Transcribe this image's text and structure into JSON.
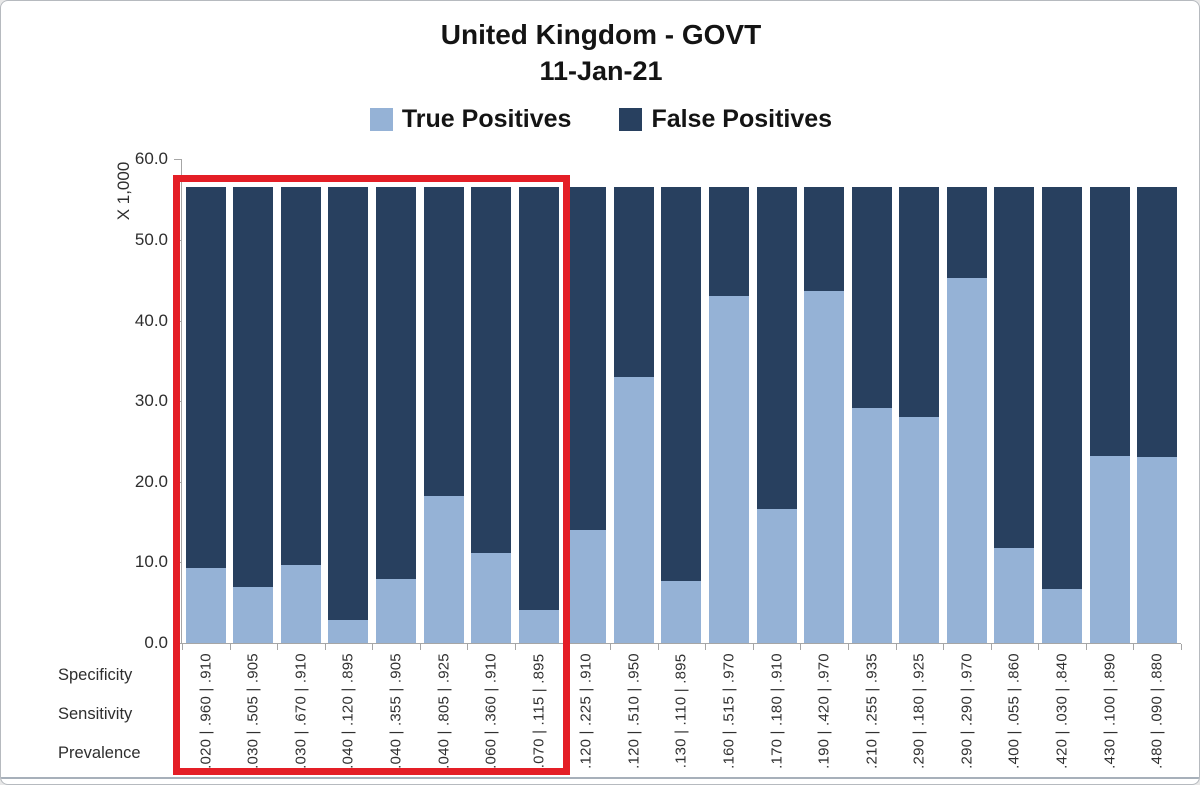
{
  "title": {
    "line1": "United Kingdom - GOVT",
    "line2": "11-Jan-21"
  },
  "legend": [
    {
      "label": "True Positives",
      "color": "#95b2d6"
    },
    {
      "label": "False Positives",
      "color": "#28405f"
    }
  ],
  "y_axis": {
    "unit_label": "X 1,000",
    "ticks": [
      "0.0",
      "10.0",
      "20.0",
      "30.0",
      "40.0",
      "50.0",
      "60.0"
    ]
  },
  "row_labels": [
    "Specificity",
    "Sensitivity",
    "Prevalence"
  ],
  "highlight": {
    "color": "#e41e26",
    "bars_highlighted_first": 1,
    "bars_highlighted_last": 8
  },
  "colors": {
    "true_positives": "#95b2d6",
    "false_positives": "#28405f",
    "axis": "#a6a6a6",
    "text": "#2e2e2e"
  },
  "chart_data": {
    "type": "bar",
    "stacked": true,
    "title": "United Kingdom - GOVT",
    "subtitle": "11-Jan-21",
    "ylabel": "X 1,000",
    "ylim": [
      0,
      60
    ],
    "y_tick_step": 10,
    "grid": false,
    "legend_position": "top",
    "bar_total": 56.6,
    "series": [
      {
        "name": "True Positives",
        "values": [
          9.3,
          7.0,
          9.7,
          2.8,
          7.9,
          18.2,
          11.2,
          4.1,
          14.0,
          33.0,
          7.7,
          43.1,
          16.6,
          43.7,
          29.2,
          28.1,
          45.3,
          11.8,
          6.7,
          23.2,
          23.1
        ]
      },
      {
        "name": "False Positives",
        "values": [
          47.3,
          49.6,
          46.9,
          53.8,
          48.7,
          38.4,
          45.4,
          52.5,
          42.6,
          23.6,
          48.9,
          13.5,
          40.0,
          12.9,
          27.4,
          28.5,
          11.3,
          44.8,
          49.9,
          33.4,
          33.5
        ]
      }
    ],
    "bars": [
      {
        "prevalence": ".020",
        "sensitivity": ".960",
        "specificity": ".910",
        "tp": 9.3,
        "fp": 47.3,
        "highlighted": true
      },
      {
        "prevalence": ".030",
        "sensitivity": ".505",
        "specificity": ".905",
        "tp": 7.0,
        "fp": 49.6,
        "highlighted": true
      },
      {
        "prevalence": ".030",
        "sensitivity": ".670",
        "specificity": ".910",
        "tp": 9.7,
        "fp": 46.9,
        "highlighted": true
      },
      {
        "prevalence": ".040",
        "sensitivity": ".120",
        "specificity": ".895",
        "tp": 2.8,
        "fp": 53.8,
        "highlighted": true
      },
      {
        "prevalence": ".040",
        "sensitivity": ".355",
        "specificity": ".905",
        "tp": 7.9,
        "fp": 48.7,
        "highlighted": true
      },
      {
        "prevalence": ".040",
        "sensitivity": ".805",
        "specificity": ".925",
        "tp": 18.2,
        "fp": 38.4,
        "highlighted": true
      },
      {
        "prevalence": ".060",
        "sensitivity": ".360",
        "specificity": ".910",
        "tp": 11.2,
        "fp": 45.4,
        "highlighted": true
      },
      {
        "prevalence": ".070",
        "sensitivity": ".115",
        "specificity": ".895",
        "tp": 4.1,
        "fp": 52.5,
        "highlighted": true
      },
      {
        "prevalence": ".120",
        "sensitivity": ".225",
        "specificity": ".910",
        "tp": 14.0,
        "fp": 42.6,
        "highlighted": false
      },
      {
        "prevalence": ".120",
        "sensitivity": ".510",
        "specificity": ".950",
        "tp": 33.0,
        "fp": 23.6,
        "highlighted": false
      },
      {
        "prevalence": ".130",
        "sensitivity": ".110",
        "specificity": ".895",
        "tp": 7.7,
        "fp": 48.9,
        "highlighted": false
      },
      {
        "prevalence": ".160",
        "sensitivity": ".515",
        "specificity": ".970",
        "tp": 43.1,
        "fp": 13.5,
        "highlighted": false
      },
      {
        "prevalence": ".170",
        "sensitivity": ".180",
        "specificity": ".910",
        "tp": 16.6,
        "fp": 40.0,
        "highlighted": false
      },
      {
        "prevalence": ".190",
        "sensitivity": ".420",
        "specificity": ".970",
        "tp": 43.7,
        "fp": 12.9,
        "highlighted": false
      },
      {
        "prevalence": ".210",
        "sensitivity": ".255",
        "specificity": ".935",
        "tp": 29.2,
        "fp": 27.4,
        "highlighted": false
      },
      {
        "prevalence": ".290",
        "sensitivity": ".180",
        "specificity": ".925",
        "tp": 28.1,
        "fp": 28.5,
        "highlighted": false
      },
      {
        "prevalence": ".290",
        "sensitivity": ".290",
        "specificity": ".970",
        "tp": 45.3,
        "fp": 11.3,
        "highlighted": false
      },
      {
        "prevalence": ".400",
        "sensitivity": ".055",
        "specificity": ".860",
        "tp": 11.8,
        "fp": 44.8,
        "highlighted": false
      },
      {
        "prevalence": ".420",
        "sensitivity": ".030",
        "specificity": ".840",
        "tp": 6.7,
        "fp": 49.9,
        "highlighted": false
      },
      {
        "prevalence": ".430",
        "sensitivity": ".100",
        "specificity": ".890",
        "tp": 23.2,
        "fp": 33.4,
        "highlighted": false
      },
      {
        "prevalence": ".480",
        "sensitivity": ".090",
        "specificity": ".880",
        "tp": 23.1,
        "fp": 33.5,
        "highlighted": false
      }
    ]
  }
}
